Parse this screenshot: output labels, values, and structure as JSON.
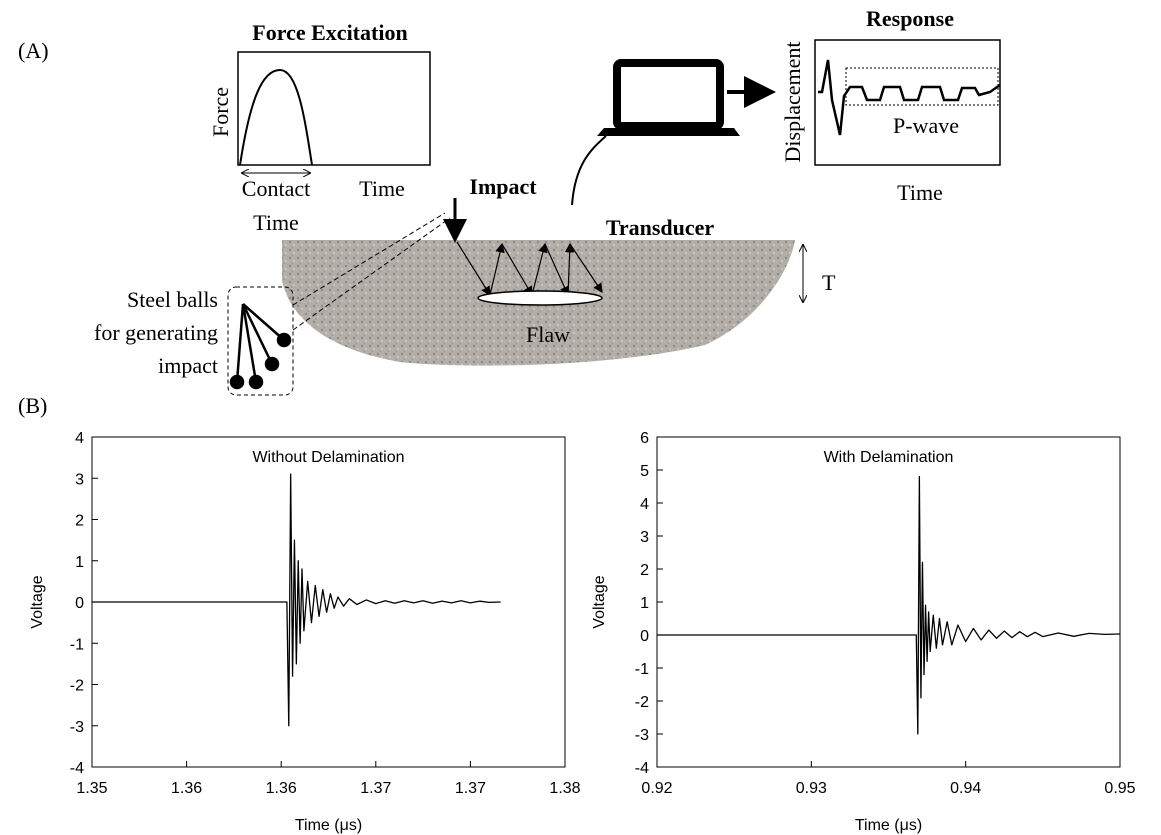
{
  "diagram": {
    "panel_a": "(A)",
    "panel_b": "(B)",
    "force_title": "Force Excitation",
    "force_axis": "Force",
    "contact_time": [
      "Contact",
      "Time"
    ],
    "force_time": "Time",
    "impact": "Impact",
    "response_title": "Response",
    "displacement": "Displacement",
    "p_wave": "P-wave",
    "response_time": "Time",
    "transducer": "Transducer",
    "thickness": "T",
    "steel_balls": [
      "Steel balls",
      "for generating",
      "impact"
    ],
    "flaw": "Flaw"
  },
  "chart_data": [
    {
      "type": "line",
      "title": "Without Delamination",
      "x_label": "Time (μs)",
      "y_label": "Voltage",
      "color": "#000000",
      "x": [
        1.35,
        1.3603,
        1.3604,
        1.3605,
        1.3606,
        1.3607,
        1.3608,
        1.3609,
        1.361,
        1.3611,
        1.3612,
        1.3614,
        1.3616,
        1.3618,
        1.362,
        1.3622,
        1.3624,
        1.3626,
        1.3628,
        1.363,
        1.3633,
        1.3636,
        1.364,
        1.3645,
        1.365,
        1.3655,
        1.366,
        1.3665,
        1.367,
        1.3675,
        1.368,
        1.3685,
        1.369,
        1.3695,
        1.37,
        1.3705,
        1.371,
        1.3716
      ],
      "values": [
        0,
        0,
        -3.0,
        3.1,
        -1.8,
        1.5,
        -1.5,
        1.0,
        -1.0,
        0.8,
        -0.7,
        0.5,
        -0.5,
        0.4,
        -0.35,
        0.3,
        -0.25,
        0.2,
        -0.15,
        0.12,
        -0.1,
        0.08,
        -0.06,
        0.05,
        -0.04,
        0.03,
        -0.03,
        0.03,
        -0.02,
        0.03,
        -0.03,
        0.02,
        -0.02,
        0.03,
        -0.02,
        0.02,
        -0.01,
        0
      ],
      "xlim": [
        1.35,
        1.375
      ],
      "xticks": [
        1.35,
        {
          "value": 1.355,
          "label": "1.36"
        },
        1.36,
        {
          "value": 1.365,
          "label": "1.37"
        },
        1.37,
        {
          "value": 1.375,
          "label": "1.38"
        }
      ],
      "ylim": [
        -4,
        4
      ],
      "yticks": [
        -4,
        -3,
        -2,
        -1,
        0,
        1,
        2,
        3,
        4
      ]
    },
    {
      "type": "line",
      "title": "With Delamination",
      "x_label": "Time (μs)",
      "y_label": "Voltage",
      "color": "#000000",
      "x": [
        0.92,
        0.9368,
        0.9369,
        0.937,
        0.9371,
        0.9372,
        0.9373,
        0.9374,
        0.9375,
        0.9376,
        0.9377,
        0.9379,
        0.9381,
        0.9383,
        0.9385,
        0.9388,
        0.9391,
        0.9395,
        0.94,
        0.9405,
        0.941,
        0.9415,
        0.942,
        0.9425,
        0.943,
        0.9435,
        0.944,
        0.9445,
        0.945,
        0.946,
        0.947,
        0.948,
        0.949,
        0.95
      ],
      "values": [
        0,
        0,
        -3.0,
        4.8,
        -1.9,
        2.2,
        -1.2,
        0.9,
        -0.8,
        0.7,
        -0.5,
        0.6,
        -0.4,
        0.5,
        -0.3,
        0.4,
        -0.3,
        0.3,
        -0.2,
        0.2,
        -0.15,
        0.15,
        -0.1,
        0.12,
        -0.08,
        0.1,
        -0.05,
        0.08,
        -0.05,
        0.06,
        -0.04,
        0.05,
        0.02,
        0.03
      ],
      "xlim": [
        0.92,
        0.95
      ],
      "xticks": [
        0.92,
        0.93,
        0.94,
        0.95
      ],
      "ylim": [
        -4,
        6
      ],
      "yticks": [
        -4,
        -3,
        -2,
        -1,
        0,
        1,
        2,
        3,
        4,
        5,
        6
      ]
    }
  ]
}
